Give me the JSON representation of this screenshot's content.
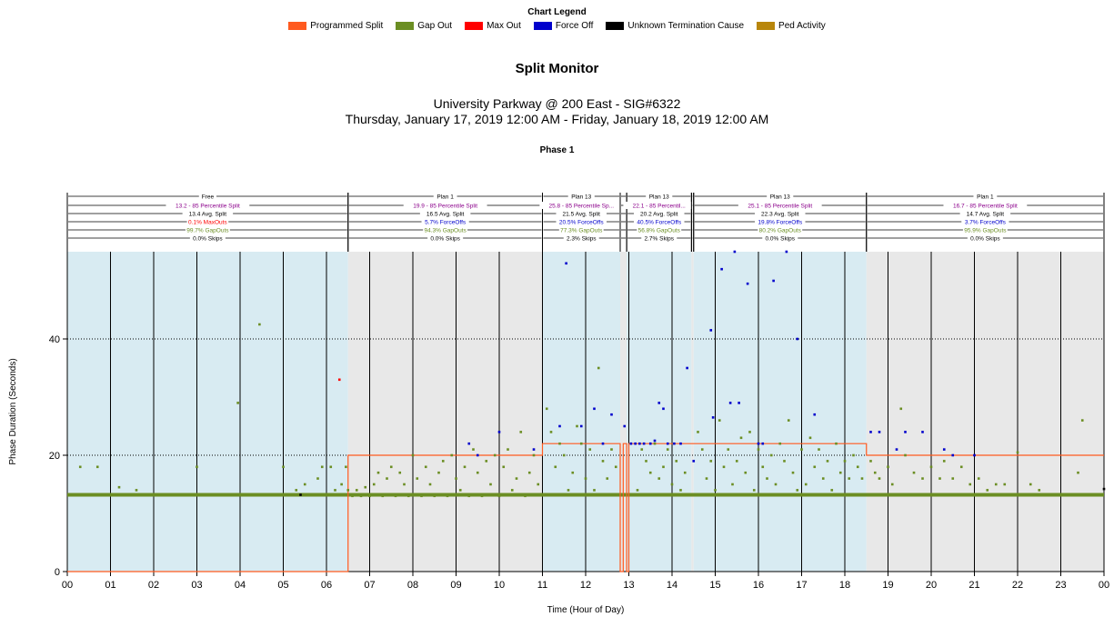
{
  "legend": {
    "title": "Chart Legend",
    "items": [
      {
        "label": "Programmed Split",
        "color": "#ff5a1f"
      },
      {
        "label": "Gap Out",
        "color": "#6b8e23"
      },
      {
        "label": "Max Out",
        "color": "#ff0000"
      },
      {
        "label": "Force Off",
        "color": "#0000cc"
      },
      {
        "label": "Unknown Termination Cause",
        "color": "#000000"
      },
      {
        "label": "Ped Activity",
        "color": "#b8860b"
      }
    ]
  },
  "chart_data": {
    "type": "scatter",
    "title": "Split Monitor",
    "subtitle": [
      "University Parkway @ 200 East - SIG#6322",
      "Thursday, January 17, 2019 12:00 AM - Friday, January 18, 2019 12:00 AM"
    ],
    "phase_label": "Phase 1",
    "xlabel": "Time (Hour of Day)",
    "ylabel": "Phase Duration (Seconds)",
    "xlim": [
      0,
      24
    ],
    "ylim": [
      0,
      55
    ],
    "xticks": [
      "00",
      "01",
      "02",
      "03",
      "04",
      "05",
      "06",
      "07",
      "08",
      "09",
      "10",
      "11",
      "12",
      "13",
      "14",
      "15",
      "16",
      "17",
      "18",
      "19",
      "20",
      "21",
      "22",
      "23",
      "00"
    ],
    "yticks": [
      0,
      20,
      40
    ],
    "grid": "dotted horizontal, solid vertical hourly",
    "plans": [
      {
        "start": 0,
        "end": 6.5,
        "name": "Free",
        "pct85": "13.2 - 85 Percentile Split",
        "avg": "13.4 Avg. Split",
        "terminations": "0.1% MaxOuts",
        "term_color": "#ff0000",
        "gapouts": "99.7% GapOuts",
        "skips": "0.0% Skips",
        "shade": "#d8ebf2"
      },
      {
        "start": 6.5,
        "end": 11.0,
        "name": "Plan 1",
        "pct85": "19.9 - 85 Percentile Split",
        "avg": "16.5 Avg. Split",
        "terminations": "5.7% ForceOffs",
        "term_color": "#0000cc",
        "gapouts": "94.3% GapOuts",
        "skips": "0.0% Skips",
        "shade": "#e8e8e8"
      },
      {
        "start": 11.0,
        "end": 12.8,
        "name": "Plan 13",
        "pct85": "25.8 - 85 Percentile Sp...",
        "avg": "21.5 Avg. Split",
        "terminations": "20.5% ForceOffs",
        "term_color": "#0000cc",
        "gapouts": "77.3% GapOuts",
        "skips": "2.3% Skips",
        "shade": "#d8ebf2"
      },
      {
        "start": 12.8,
        "end": 12.95,
        "name": "",
        "pct85": "",
        "avg": "",
        "terminations": "",
        "term_color": "#0000cc",
        "gapouts": "",
        "skips": "",
        "shade": "#e8e8e8"
      },
      {
        "start": 12.95,
        "end": 14.45,
        "name": "Plan 13",
        "pct85": "22.1 - 85 Percentil...",
        "avg": "20.2 Avg. Split",
        "terminations": "40.5% ForceOffs",
        "term_color": "#0000cc",
        "gapouts": "56.8% GapOuts",
        "skips": "2.7% Skips",
        "shade": "#d8ebf2"
      },
      {
        "start": 14.45,
        "end": 14.5,
        "name": "",
        "pct85": "",
        "avg": "",
        "terminations": "",
        "term_color": "#0000cc",
        "gapouts": "",
        "skips": "",
        "shade": "#e8e8e8"
      },
      {
        "start": 14.5,
        "end": 18.5,
        "name": "Plan 13",
        "pct85": "25.1 - 85 Percentile Split",
        "avg": "22.3 Avg. Split",
        "terminations": "19.8% ForceOffs",
        "term_color": "#0000cc",
        "gapouts": "80.2% GapOuts",
        "skips": "0.0% Skips",
        "shade": "#d8ebf2"
      },
      {
        "start": 18.5,
        "end": 24.0,
        "name": "Plan 1",
        "pct85": "16.7 - 85 Percentile Split",
        "avg": "14.7 Avg. Split",
        "terminations": "3.7% ForceOffs",
        "term_color": "#0000cc",
        "gapouts": "95.9% GapOuts",
        "skips": "0.0% Skips",
        "shade": "#e8e8e8"
      }
    ],
    "programmed_split": [
      [
        0,
        0
      ],
      [
        6.5,
        0
      ],
      [
        6.5,
        20
      ],
      [
        11,
        20
      ],
      [
        11,
        22
      ],
      [
        12.8,
        22
      ],
      [
        12.8,
        0
      ],
      [
        12.87,
        0
      ],
      [
        12.87,
        22
      ],
      [
        12.95,
        22
      ],
      [
        12.95,
        0
      ],
      [
        13.0,
        0
      ],
      [
        13.0,
        22
      ],
      [
        18.5,
        22
      ],
      [
        18.5,
        20
      ],
      [
        24,
        20
      ]
    ],
    "series": [
      {
        "name": "Gap Out",
        "color": "#6b8e23",
        "points": [
          [
            0.3,
            18
          ],
          [
            0.7,
            18
          ],
          [
            1.2,
            14.5
          ],
          [
            1.6,
            14
          ],
          [
            3.0,
            18
          ],
          [
            3.95,
            29
          ],
          [
            4.45,
            42.5
          ],
          [
            5.0,
            18
          ],
          [
            5.3,
            14
          ],
          [
            5.5,
            15
          ],
          [
            5.8,
            16
          ],
          [
            5.9,
            18
          ],
          [
            6.1,
            18
          ],
          [
            6.2,
            14
          ],
          [
            6.35,
            15
          ],
          [
            6.45,
            18
          ],
          [
            6.5,
            14
          ],
          [
            6.6,
            13
          ],
          [
            6.7,
            14
          ],
          [
            6.8,
            13
          ],
          [
            6.9,
            14.5
          ],
          [
            7.0,
            13
          ],
          [
            7.1,
            15
          ],
          [
            7.2,
            17
          ],
          [
            7.3,
            13
          ],
          [
            7.4,
            16
          ],
          [
            7.5,
            18
          ],
          [
            7.6,
            13
          ],
          [
            7.7,
            17
          ],
          [
            7.8,
            15
          ],
          [
            7.9,
            13
          ],
          [
            8.0,
            20
          ],
          [
            8.1,
            16
          ],
          [
            8.2,
            13
          ],
          [
            8.3,
            18
          ],
          [
            8.4,
            15
          ],
          [
            8.5,
            13
          ],
          [
            8.6,
            17
          ],
          [
            8.7,
            19
          ],
          [
            8.8,
            13
          ],
          [
            8.9,
            20
          ],
          [
            9.0,
            16
          ],
          [
            9.1,
            14
          ],
          [
            9.2,
            18
          ],
          [
            9.3,
            13
          ],
          [
            9.4,
            21
          ],
          [
            9.5,
            17
          ],
          [
            9.6,
            13
          ],
          [
            9.7,
            19
          ],
          [
            9.8,
            15
          ],
          [
            9.9,
            20
          ],
          [
            10.0,
            13
          ],
          [
            10.1,
            18
          ],
          [
            10.2,
            21
          ],
          [
            10.3,
            14
          ],
          [
            10.4,
            16
          ],
          [
            10.5,
            24
          ],
          [
            10.6,
            13
          ],
          [
            10.7,
            17
          ],
          [
            10.8,
            20
          ],
          [
            10.9,
            15
          ],
          [
            11.1,
            28
          ],
          [
            11.2,
            24
          ],
          [
            11.3,
            18
          ],
          [
            11.4,
            22
          ],
          [
            11.5,
            20
          ],
          [
            11.6,
            14
          ],
          [
            11.7,
            17
          ],
          [
            11.8,
            25
          ],
          [
            11.9,
            22
          ],
          [
            12.0,
            16
          ],
          [
            12.1,
            21
          ],
          [
            12.2,
            14
          ],
          [
            12.3,
            35
          ],
          [
            12.4,
            19
          ],
          [
            12.5,
            16
          ],
          [
            12.6,
            21
          ],
          [
            12.7,
            18
          ],
          [
            13.2,
            14
          ],
          [
            13.3,
            21
          ],
          [
            13.4,
            19
          ],
          [
            13.5,
            17
          ],
          [
            13.6,
            22
          ],
          [
            13.7,
            16
          ],
          [
            13.8,
            18
          ],
          [
            13.9,
            21
          ],
          [
            14.0,
            15
          ],
          [
            14.1,
            19
          ],
          [
            14.2,
            14
          ],
          [
            14.3,
            17
          ],
          [
            14.6,
            24
          ],
          [
            14.7,
            21
          ],
          [
            14.8,
            16
          ],
          [
            14.9,
            19
          ],
          [
            15.0,
            14
          ],
          [
            15.1,
            26
          ],
          [
            15.2,
            18
          ],
          [
            15.3,
            21
          ],
          [
            15.4,
            15
          ],
          [
            15.5,
            19
          ],
          [
            15.6,
            23
          ],
          [
            15.7,
            17
          ],
          [
            15.8,
            24
          ],
          [
            15.9,
            14
          ],
          [
            16.0,
            21
          ],
          [
            16.1,
            18
          ],
          [
            16.2,
            16
          ],
          [
            16.3,
            20
          ],
          [
            16.4,
            15
          ],
          [
            16.5,
            22
          ],
          [
            16.6,
            19
          ],
          [
            16.7,
            26
          ],
          [
            16.8,
            17
          ],
          [
            16.9,
            14
          ],
          [
            17.0,
            21
          ],
          [
            17.1,
            15
          ],
          [
            17.2,
            23
          ],
          [
            17.3,
            18
          ],
          [
            17.4,
            21
          ],
          [
            17.5,
            16
          ],
          [
            17.6,
            19
          ],
          [
            17.7,
            14
          ],
          [
            17.8,
            22
          ],
          [
            17.9,
            17
          ],
          [
            18.0,
            19
          ],
          [
            18.1,
            16
          ],
          [
            18.2,
            20
          ],
          [
            18.3,
            18
          ],
          [
            18.4,
            16
          ],
          [
            18.6,
            19
          ],
          [
            18.7,
            17
          ],
          [
            18.8,
            16
          ],
          [
            19.0,
            18
          ],
          [
            19.1,
            15
          ],
          [
            19.3,
            28
          ],
          [
            19.4,
            20
          ],
          [
            19.6,
            17
          ],
          [
            19.8,
            16
          ],
          [
            20.0,
            18
          ],
          [
            20.2,
            16
          ],
          [
            20.3,
            19
          ],
          [
            20.5,
            16
          ],
          [
            20.7,
            18
          ],
          [
            20.9,
            15
          ],
          [
            21.1,
            16
          ],
          [
            21.3,
            14
          ],
          [
            21.5,
            15
          ],
          [
            21.7,
            15
          ],
          [
            22.0,
            20.5
          ],
          [
            22.3,
            15
          ],
          [
            22.5,
            14
          ],
          [
            23.4,
            17
          ],
          [
            23.5,
            26
          ]
        ]
      },
      {
        "name": "Max Out",
        "color": "#ff0000",
        "points": [
          [
            6.3,
            33
          ]
        ]
      },
      {
        "name": "Force Off",
        "color": "#0000cc",
        "points": [
          [
            9.3,
            22
          ],
          [
            9.5,
            20
          ],
          [
            10.0,
            24
          ],
          [
            10.8,
            21
          ],
          [
            11.4,
            25
          ],
          [
            11.55,
            53
          ],
          [
            11.9,
            25
          ],
          [
            12.2,
            28
          ],
          [
            12.4,
            22
          ],
          [
            12.6,
            27
          ],
          [
            12.9,
            25
          ],
          [
            13.05,
            22
          ],
          [
            13.15,
            22
          ],
          [
            13.25,
            22
          ],
          [
            13.35,
            22
          ],
          [
            13.5,
            22
          ],
          [
            13.6,
            22.5
          ],
          [
            13.7,
            29
          ],
          [
            13.8,
            28
          ],
          [
            13.9,
            22
          ],
          [
            14.05,
            22
          ],
          [
            14.2,
            22
          ],
          [
            14.35,
            35
          ],
          [
            14.5,
            19
          ],
          [
            14.9,
            41.5
          ],
          [
            14.95,
            26.5
          ],
          [
            15.15,
            52
          ],
          [
            15.35,
            29
          ],
          [
            15.45,
            55
          ],
          [
            15.55,
            29
          ],
          [
            15.75,
            49.5
          ],
          [
            16.0,
            22
          ],
          [
            16.1,
            22
          ],
          [
            16.35,
            50
          ],
          [
            16.65,
            55
          ],
          [
            16.9,
            40
          ],
          [
            17.3,
            27
          ],
          [
            18.6,
            24
          ],
          [
            18.8,
            24
          ],
          [
            19.2,
            21
          ],
          [
            19.4,
            24
          ],
          [
            19.8,
            24
          ],
          [
            20.3,
            21
          ],
          [
            20.5,
            20
          ],
          [
            21.0,
            20
          ]
        ]
      },
      {
        "name": "Unknown Termination Cause",
        "color": "#000000",
        "points": [
          [
            5.4,
            13.2
          ],
          [
            24.0,
            14.2
          ]
        ]
      }
    ],
    "baseline_band": {
      "from": 0,
      "to": 24,
      "value": 13.2,
      "color": "#6b8e23"
    }
  }
}
